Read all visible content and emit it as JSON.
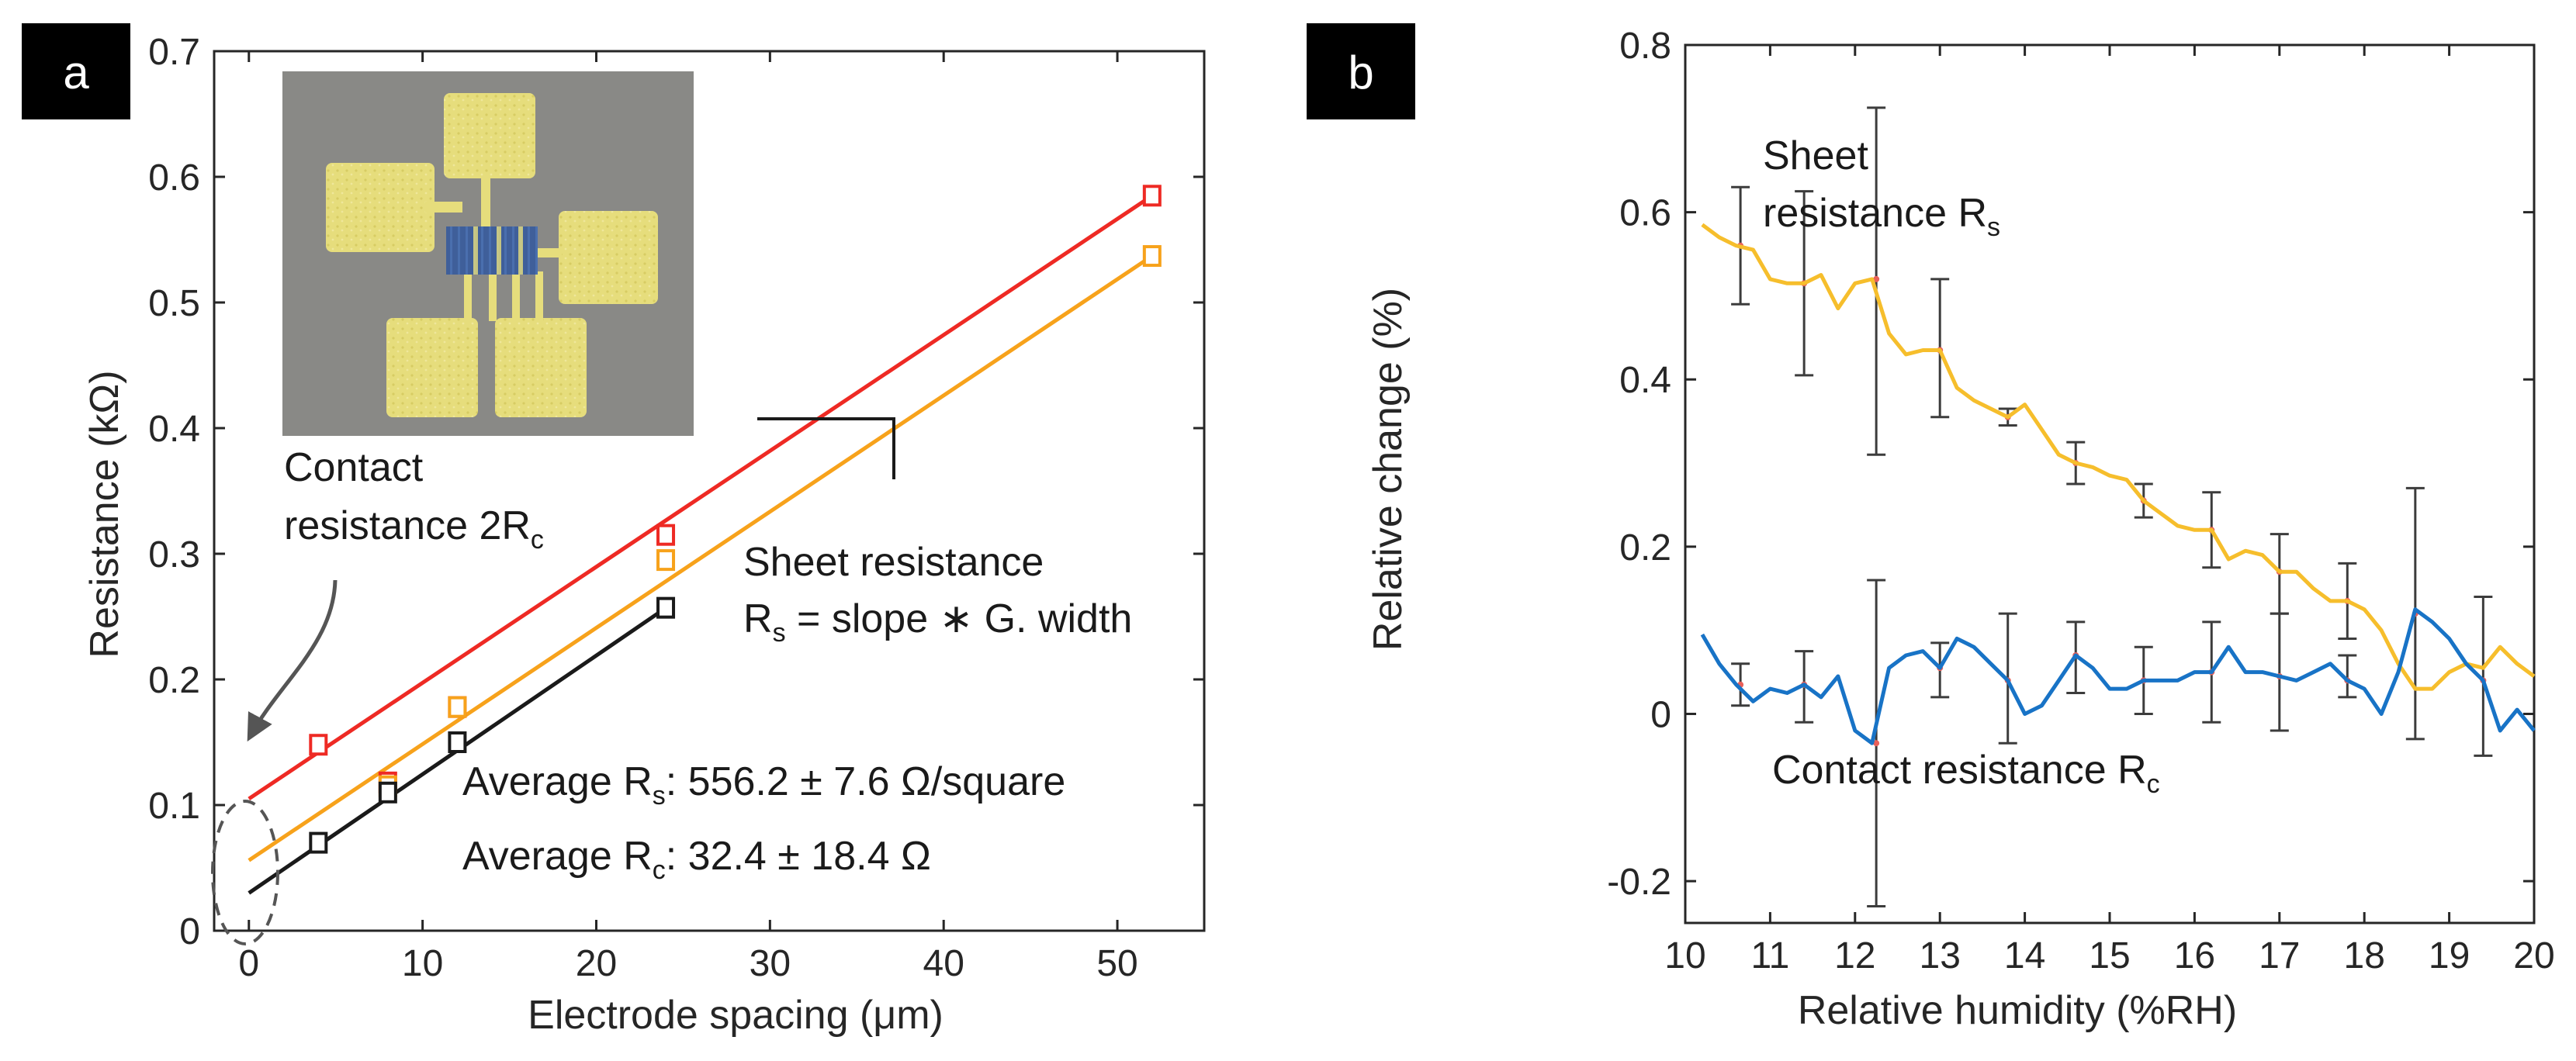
{
  "colors": {
    "red": "#ee2a24",
    "orange": "#f7a21b",
    "black": "#1a1a1a",
    "gold": "#f6be2c",
    "blue": "#1873c6",
    "errorbar": "#3c3c3c",
    "axis": "#262626",
    "label_box": "#000000"
  },
  "chart_data": [
    {
      "panel": "a",
      "type": "scatter",
      "panel_label": "a",
      "xlabel": "Electrode spacing (μm)",
      "ylabel": "Resistance (kΩ)",
      "xlim": [
        -2,
        55
      ],
      "ylim": [
        0,
        0.7
      ],
      "xticks": [
        0,
        10,
        20,
        30,
        40,
        50
      ],
      "xtick_labels": [
        "0",
        "10",
        "20",
        "30",
        "40",
        "50"
      ],
      "yticks": [
        0,
        0.1,
        0.2,
        0.3,
        0.4,
        0.5,
        0.6,
        0.7
      ],
      "ytick_labels": [
        "0",
        "0.1",
        "0.2",
        "0.3",
        "0.4",
        "0.5",
        "0.6",
        "0.7"
      ],
      "series": [
        {
          "name": "red",
          "color": "#ee2a24",
          "x": [
            4,
            8,
            12,
            24,
            52
          ],
          "y": [
            0.148,
            0.118,
            0.178,
            0.315,
            0.585
          ],
          "fit": {
            "intercept": 0.105,
            "slope": 0.00923,
            "x_end": 52
          }
        },
        {
          "name": "orange",
          "color": "#f7a21b",
          "x": [
            8,
            12,
            24,
            52
          ],
          "y": [
            0.115,
            0.178,
            0.295,
            0.537
          ],
          "fit": {
            "intercept": 0.056,
            "slope": 0.00925,
            "x_end": 52
          }
        },
        {
          "name": "black",
          "color": "#1a1a1a",
          "x": [
            4,
            8,
            12,
            24
          ],
          "y": [
            0.07,
            0.11,
            0.15,
            0.257
          ],
          "fit": {
            "intercept": 0.03,
            "slope": 0.00945,
            "x_end": 24
          }
        }
      ],
      "inset": "optical micrograph of four yellow pads around a blue channel",
      "annotations": {
        "contact_1": "Contact",
        "contact_2": "resistance 2R",
        "contact_sub": "c",
        "sheet_1": "Sheet resistance",
        "sheet_2a": "R",
        "sheet_2sub": "s",
        "sheet_2b": " = slope ∗ G. width",
        "avg_rs_a": "Average R",
        "avg_rs_sub": "s",
        "avg_rs_b": ": 556.2 ± 7.6 Ω/square",
        "avg_rc_a": "Average R",
        "avg_rc_sub": "c",
        "avg_rc_b": ": 32.4 ± 18.4 Ω"
      }
    },
    {
      "panel": "b",
      "type": "line",
      "panel_label": "b",
      "xlabel": "Relative humidity (%RH)",
      "ylabel": "Relative change (%)",
      "xlim": [
        10,
        20
      ],
      "ylim": [
        -0.25,
        0.8
      ],
      "xticks": [
        10,
        11,
        12,
        13,
        14,
        15,
        16,
        17,
        18,
        19,
        20
      ],
      "xtick_labels": [
        "10",
        "11",
        "12",
        "13",
        "14",
        "15",
        "16",
        "17",
        "18",
        "19",
        "20"
      ],
      "yticks": [
        -0.2,
        0,
        0.2,
        0.4,
        0.6,
        0.8
      ],
      "ytick_labels": [
        "-0.2",
        "0",
        "0.2",
        "0.4",
        "0.6",
        "0.8"
      ],
      "series": [
        {
          "name": "Sheet resistance Rs",
          "color": "#f6be2c",
          "x": [
            10.2,
            10.4,
            10.6,
            10.8,
            11.0,
            11.2,
            11.4,
            11.6,
            11.8,
            12.0,
            12.2,
            12.4,
            12.6,
            12.8,
            13.0,
            13.2,
            13.4,
            13.6,
            13.8,
            14.0,
            14.2,
            14.4,
            14.6,
            14.8,
            15.0,
            15.2,
            15.4,
            15.6,
            15.8,
            16.0,
            16.2,
            16.4,
            16.6,
            16.8,
            17.0,
            17.2,
            17.4,
            17.6,
            17.8,
            18.0,
            18.2,
            18.4,
            18.6,
            18.8,
            19.0,
            19.2,
            19.4,
            19.6,
            19.8,
            20.0
          ],
          "y": [
            0.585,
            0.57,
            0.56,
            0.555,
            0.52,
            0.515,
            0.515,
            0.525,
            0.485,
            0.515,
            0.52,
            0.455,
            0.43,
            0.435,
            0.435,
            0.39,
            0.375,
            0.365,
            0.355,
            0.37,
            0.34,
            0.31,
            0.3,
            0.295,
            0.285,
            0.28,
            0.255,
            0.24,
            0.225,
            0.22,
            0.22,
            0.185,
            0.195,
            0.19,
            0.17,
            0.17,
            0.15,
            0.135,
            0.135,
            0.125,
            0.1,
            0.06,
            0.03,
            0.03,
            0.05,
            0.06,
            0.055,
            0.08,
            0.06,
            0.045
          ],
          "errorbars": [
            {
              "x": 10.65,
              "y": 0.56,
              "lo": 0.49,
              "hi": 0.63
            },
            {
              "x": 11.4,
              "y": 0.515,
              "lo": 0.405,
              "hi": 0.625
            },
            {
              "x": 12.25,
              "y": 0.52,
              "lo": 0.31,
              "hi": 0.725
            },
            {
              "x": 13.0,
              "y": 0.435,
              "lo": 0.355,
              "hi": 0.52
            },
            {
              "x": 13.8,
              "y": 0.355,
              "lo": 0.345,
              "hi": 0.365
            },
            {
              "x": 14.6,
              "y": 0.3,
              "lo": 0.275,
              "hi": 0.325
            },
            {
              "x": 15.4,
              "y": 0.255,
              "lo": 0.235,
              "hi": 0.275
            },
            {
              "x": 16.2,
              "y": 0.22,
              "lo": 0.175,
              "hi": 0.265
            },
            {
              "x": 17.0,
              "y": 0.17,
              "lo": 0.12,
              "hi": 0.215
            },
            {
              "x": 17.8,
              "y": 0.135,
              "lo": 0.09,
              "hi": 0.18
            }
          ]
        },
        {
          "name": "Contact resistance Rc",
          "color": "#1873c6",
          "x": [
            10.2,
            10.4,
            10.6,
            10.8,
            11.0,
            11.2,
            11.4,
            11.6,
            11.8,
            12.0,
            12.2,
            12.4,
            12.6,
            12.8,
            13.0,
            13.2,
            13.4,
            13.6,
            13.8,
            14.0,
            14.2,
            14.4,
            14.6,
            14.8,
            15.0,
            15.2,
            15.4,
            15.6,
            15.8,
            16.0,
            16.2,
            16.4,
            16.6,
            16.8,
            17.0,
            17.2,
            17.4,
            17.6,
            17.8,
            18.0,
            18.2,
            18.4,
            18.6,
            18.8,
            19.0,
            19.2,
            19.4,
            19.6,
            19.8,
            20.0
          ],
          "y": [
            0.095,
            0.06,
            0.035,
            0.015,
            0.03,
            0.025,
            0.035,
            0.02,
            0.045,
            -0.02,
            -0.035,
            0.055,
            0.07,
            0.075,
            0.055,
            0.09,
            0.08,
            0.06,
            0.04,
            0.0,
            0.01,
            0.04,
            0.07,
            0.055,
            0.03,
            0.03,
            0.04,
            0.04,
            0.04,
            0.05,
            0.05,
            0.08,
            0.05,
            0.05,
            0.045,
            0.04,
            0.05,
            0.06,
            0.04,
            0.03,
            0.0,
            0.05,
            0.125,
            0.11,
            0.09,
            0.06,
            0.04,
            -0.02,
            0.005,
            -0.02
          ],
          "errorbars": [
            {
              "x": 10.65,
              "y": 0.035,
              "lo": 0.01,
              "hi": 0.06
            },
            {
              "x": 11.4,
              "y": 0.035,
              "lo": -0.01,
              "hi": 0.075
            },
            {
              "x": 12.25,
              "y": -0.035,
              "lo": -0.23,
              "hi": 0.16
            },
            {
              "x": 13.0,
              "y": 0.055,
              "lo": 0.02,
              "hi": 0.085
            },
            {
              "x": 13.8,
              "y": 0.04,
              "lo": -0.035,
              "hi": 0.12
            },
            {
              "x": 14.6,
              "y": 0.07,
              "lo": 0.025,
              "hi": 0.11
            },
            {
              "x": 15.4,
              "y": 0.04,
              "lo": 0.0,
              "hi": 0.08
            },
            {
              "x": 16.2,
              "y": 0.05,
              "lo": -0.01,
              "hi": 0.11
            },
            {
              "x": 17.0,
              "y": 0.045,
              "lo": -0.02,
              "hi": 0.12
            },
            {
              "x": 17.8,
              "y": 0.04,
              "lo": 0.02,
              "hi": 0.07
            },
            {
              "x": 18.6,
              "y": 0.12,
              "lo": -0.03,
              "hi": 0.27
            },
            {
              "x": 19.4,
              "y": 0.04,
              "lo": -0.05,
              "hi": 0.14
            }
          ]
        }
      ],
      "annotations": {
        "sheet_1": "Sheet",
        "sheet_2": "resistance R",
        "sheet_sub": "s",
        "contact": "Contact resistance R",
        "contact_sub": "c"
      }
    }
  ]
}
